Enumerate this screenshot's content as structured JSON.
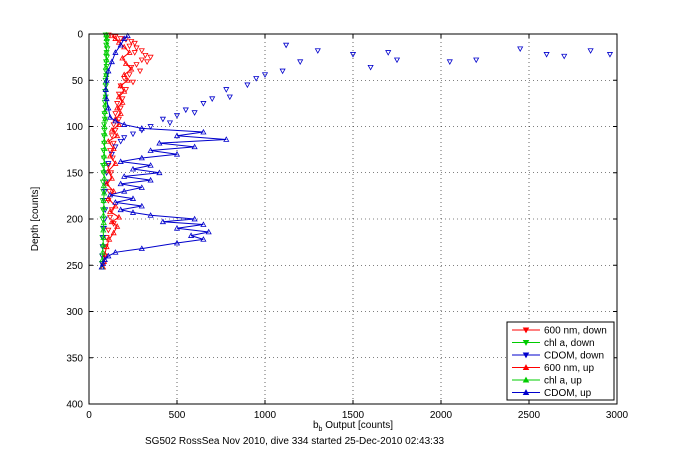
{
  "chart_data": {
    "type": "scatter",
    "caption": "SG502 RossSea Nov 2010, dive 334 started 25-Dec-2010 02:43:33",
    "xlabel_main": "b",
    "xlabel_sub": "b",
    "xlabel_rest": " Output [counts]",
    "ylabel": "Depth [counts]",
    "xlim": [
      0,
      3000
    ],
    "ylim": [
      0,
      400
    ],
    "y_reversed": true,
    "grid": true,
    "grid_style": "dotted",
    "legend_position": "bottom-right",
    "xticks": [
      "0",
      "500",
      "1000",
      "1500",
      "2000",
      "2500",
      "3000"
    ],
    "yticks": [
      "0",
      "50",
      "100",
      "150",
      "200",
      "250",
      "300",
      "350",
      "400"
    ],
    "series": [
      {
        "name": "600 nm, down",
        "color": "#ff0000",
        "marker": "triangle-down",
        "line": false,
        "points": [
          [
            110,
            1
          ],
          [
            150,
            3
          ],
          [
            180,
            5
          ],
          [
            210,
            6
          ],
          [
            240,
            8
          ],
          [
            260,
            10
          ],
          [
            230,
            13
          ],
          [
            270,
            15
          ],
          [
            300,
            18
          ],
          [
            260,
            20
          ],
          [
            320,
            23
          ],
          [
            350,
            25
          ],
          [
            300,
            28
          ],
          [
            330,
            30
          ],
          [
            270,
            33
          ],
          [
            240,
            36
          ],
          [
            290,
            40
          ],
          [
            230,
            44
          ],
          [
            200,
            48
          ],
          [
            250,
            52
          ],
          [
            180,
            56
          ],
          [
            210,
            60
          ],
          [
            170,
            65
          ],
          [
            190,
            70
          ],
          [
            160,
            75
          ],
          [
            180,
            80
          ],
          [
            150,
            86
          ],
          [
            170,
            92
          ],
          [
            140,
            98
          ],
          [
            150,
            104
          ],
          [
            130,
            110
          ],
          [
            140,
            118
          ],
          [
            120,
            126
          ],
          [
            135,
            134
          ],
          [
            110,
            142
          ],
          [
            125,
            150
          ],
          [
            105,
            160
          ],
          [
            115,
            170
          ],
          [
            110,
            180
          ],
          [
            130,
            190
          ],
          [
            120,
            198
          ],
          [
            140,
            205
          ],
          [
            110,
            212
          ],
          [
            100,
            220
          ],
          [
            95,
            230
          ],
          [
            90,
            240
          ],
          [
            85,
            248
          ]
        ]
      },
      {
        "name": "chl a, down",
        "color": "#00cc00",
        "marker": "triangle-down",
        "line": false,
        "points": [
          [
            95,
            1
          ],
          [
            100,
            4
          ],
          [
            102,
            8
          ],
          [
            98,
            12
          ],
          [
            104,
            16
          ],
          [
            100,
            20
          ],
          [
            102,
            25
          ],
          [
            97,
            30
          ],
          [
            100,
            35
          ],
          [
            96,
            40
          ],
          [
            98,
            45
          ],
          [
            94,
            50
          ],
          [
            96,
            56
          ],
          [
            92,
            62
          ],
          [
            95,
            68
          ],
          [
            90,
            74
          ],
          [
            92,
            80
          ],
          [
            88,
            86
          ],
          [
            90,
            92
          ],
          [
            86,
            98
          ],
          [
            88,
            104
          ],
          [
            85,
            110
          ],
          [
            86,
            118
          ],
          [
            82,
            126
          ],
          [
            84,
            134
          ],
          [
            80,
            142
          ],
          [
            82,
            150
          ],
          [
            79,
            160
          ],
          [
            81,
            170
          ],
          [
            78,
            180
          ],
          [
            80,
            190
          ],
          [
            77,
            200
          ],
          [
            79,
            210
          ],
          [
            76,
            220
          ],
          [
            78,
            230
          ],
          [
            75,
            240
          ],
          [
            74,
            248
          ]
        ]
      },
      {
        "name": "CDOM, down",
        "color": "#0000cc",
        "marker": "triangle-down",
        "line": false,
        "points": [
          [
            1120,
            12
          ],
          [
            1300,
            18
          ],
          [
            1500,
            22
          ],
          [
            1700,
            20
          ],
          [
            2050,
            30
          ],
          [
            2200,
            28
          ],
          [
            2450,
            16
          ],
          [
            2600,
            22
          ],
          [
            2700,
            24
          ],
          [
            2850,
            18
          ],
          [
            2960,
            22
          ],
          [
            1600,
            36
          ],
          [
            1750,
            28
          ],
          [
            1200,
            30
          ],
          [
            1000,
            44
          ],
          [
            1100,
            40
          ],
          [
            900,
            55
          ],
          [
            950,
            48
          ],
          [
            780,
            60
          ],
          [
            800,
            68
          ],
          [
            700,
            70
          ],
          [
            650,
            75
          ],
          [
            550,
            82
          ],
          [
            600,
            85
          ],
          [
            500,
            88
          ],
          [
            420,
            92
          ],
          [
            460,
            96
          ],
          [
            350,
            100
          ],
          [
            300,
            104
          ],
          [
            250,
            108
          ],
          [
            200,
            112
          ],
          [
            180,
            116
          ],
          [
            150,
            122
          ],
          [
            130,
            130
          ],
          [
            110,
            140
          ],
          [
            100,
            150
          ],
          [
            95,
            160
          ],
          [
            90,
            170
          ],
          [
            88,
            180
          ],
          [
            92,
            190
          ],
          [
            90,
            200
          ],
          [
            85,
            210
          ],
          [
            80,
            220
          ],
          [
            78,
            230
          ],
          [
            76,
            240
          ],
          [
            75,
            248
          ]
        ]
      },
      {
        "name": "600 nm, up",
        "color": "#ff0000",
        "marker": "triangle-up",
        "line": true,
        "points": [
          [
            80,
            252
          ],
          [
            85,
            246
          ],
          [
            90,
            238
          ],
          [
            100,
            230
          ],
          [
            115,
            222
          ],
          [
            140,
            215
          ],
          [
            160,
            208
          ],
          [
            130,
            203
          ],
          [
            170,
            198
          ],
          [
            120,
            192
          ],
          [
            150,
            186
          ],
          [
            110,
            178
          ],
          [
            140,
            170
          ],
          [
            100,
            162
          ],
          [
            130,
            156
          ],
          [
            110,
            148
          ],
          [
            150,
            140
          ],
          [
            120,
            132
          ],
          [
            140,
            124
          ],
          [
            110,
            116
          ],
          [
            160,
            110
          ],
          [
            130,
            104
          ],
          [
            170,
            98
          ],
          [
            150,
            92
          ],
          [
            180,
            86
          ],
          [
            160,
            80
          ],
          [
            190,
            74
          ],
          [
            170,
            68
          ],
          [
            200,
            62
          ],
          [
            180,
            56
          ],
          [
            220,
            50
          ],
          [
            200,
            44
          ],
          [
            240,
            38
          ],
          [
            210,
            32
          ],
          [
            190,
            26
          ],
          [
            230,
            20
          ],
          [
            200,
            14
          ],
          [
            170,
            9
          ],
          [
            150,
            5
          ],
          [
            130,
            2
          ]
        ]
      },
      {
        "name": "chl a, up",
        "color": "#00cc00",
        "marker": "triangle-up",
        "line": true,
        "points": [
          [
            74,
            252
          ],
          [
            76,
            244
          ],
          [
            78,
            236
          ],
          [
            80,
            228
          ],
          [
            82,
            220
          ],
          [
            81,
            212
          ],
          [
            84,
            204
          ],
          [
            82,
            196
          ],
          [
            85,
            188
          ],
          [
            83,
            180
          ],
          [
            86,
            172
          ],
          [
            84,
            164
          ],
          [
            87,
            156
          ],
          [
            85,
            148
          ],
          [
            88,
            140
          ],
          [
            86,
            132
          ],
          [
            89,
            124
          ],
          [
            87,
            116
          ],
          [
            90,
            108
          ],
          [
            88,
            100
          ],
          [
            92,
            92
          ],
          [
            90,
            84
          ],
          [
            94,
            76
          ],
          [
            92,
            68
          ],
          [
            96,
            60
          ],
          [
            94,
            52
          ],
          [
            98,
            44
          ],
          [
            96,
            36
          ],
          [
            100,
            28
          ],
          [
            98,
            20
          ],
          [
            102,
            12
          ],
          [
            100,
            5
          ],
          [
            98,
            1
          ]
        ]
      },
      {
        "name": "CDOM, up",
        "color": "#0000cc",
        "marker": "triangle-up",
        "line": true,
        "points": [
          [
            72,
            252
          ],
          [
            80,
            248
          ],
          [
            90,
            244
          ],
          [
            110,
            240
          ],
          [
            150,
            236
          ],
          [
            300,
            232
          ],
          [
            500,
            226
          ],
          [
            650,
            222
          ],
          [
            580,
            218
          ],
          [
            680,
            214
          ],
          [
            500,
            210
          ],
          [
            650,
            206
          ],
          [
            420,
            203
          ],
          [
            600,
            200
          ],
          [
            350,
            196
          ],
          [
            250,
            193
          ],
          [
            180,
            190
          ],
          [
            300,
            186
          ],
          [
            150,
            182
          ],
          [
            250,
            178
          ],
          [
            120,
            174
          ],
          [
            200,
            170
          ],
          [
            300,
            166
          ],
          [
            180,
            162
          ],
          [
            350,
            158
          ],
          [
            200,
            154
          ],
          [
            400,
            150
          ],
          [
            250,
            146
          ],
          [
            350,
            142
          ],
          [
            180,
            138
          ],
          [
            300,
            134
          ],
          [
            500,
            130
          ],
          [
            350,
            126
          ],
          [
            600,
            122
          ],
          [
            400,
            118
          ],
          [
            780,
            114
          ],
          [
            500,
            110
          ],
          [
            650,
            106
          ],
          [
            300,
            102
          ],
          [
            200,
            98
          ],
          [
            150,
            94
          ],
          [
            120,
            90
          ],
          [
            110,
            80
          ],
          [
            100,
            70
          ],
          [
            95,
            60
          ],
          [
            100,
            50
          ],
          [
            110,
            40
          ],
          [
            130,
            30
          ],
          [
            150,
            20
          ],
          [
            180,
            12
          ],
          [
            200,
            5
          ],
          [
            220,
            2
          ]
        ]
      }
    ]
  }
}
